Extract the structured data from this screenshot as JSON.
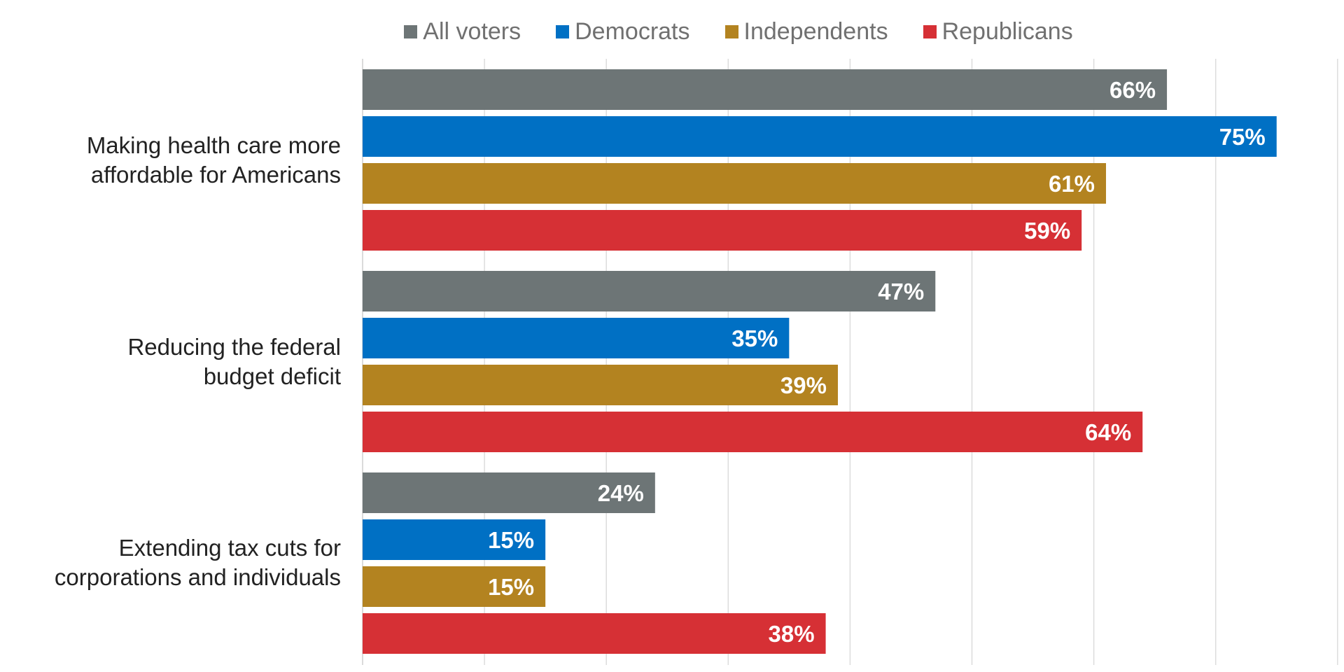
{
  "chart_data": {
    "type": "bar",
    "orientation": "horizontal",
    "categories": [
      [
        "Making health care more",
        "affordable for Americans"
      ],
      [
        "Reducing the federal",
        "budget deficit"
      ],
      [
        "Extending tax cuts for",
        "corporations and individuals"
      ]
    ],
    "series": [
      {
        "name": "All voters",
        "color": "#6d7576",
        "values": [
          66,
          47,
          24
        ],
        "labels": [
          "66%",
          "47%",
          "24%"
        ]
      },
      {
        "name": "Democrats",
        "color": "#0070c4",
        "values": [
          75,
          35,
          15
        ],
        "labels": [
          "75%",
          "35%",
          "15%"
        ]
      },
      {
        "name": "Independents",
        "color": "#b38320",
        "values": [
          61,
          39,
          15
        ],
        "labels": [
          "61%",
          "39%",
          "15%"
        ]
      },
      {
        "name": "Republicans",
        "color": "#d63035",
        "values": [
          59,
          64,
          38
        ],
        "labels": [
          "59%",
          "64%",
          "38%"
        ]
      }
    ],
    "xlim": [
      0,
      80
    ],
    "grid_step": 10,
    "grid": true,
    "legend_position": "top",
    "title": "",
    "xlabel": "",
    "ylabel": ""
  }
}
